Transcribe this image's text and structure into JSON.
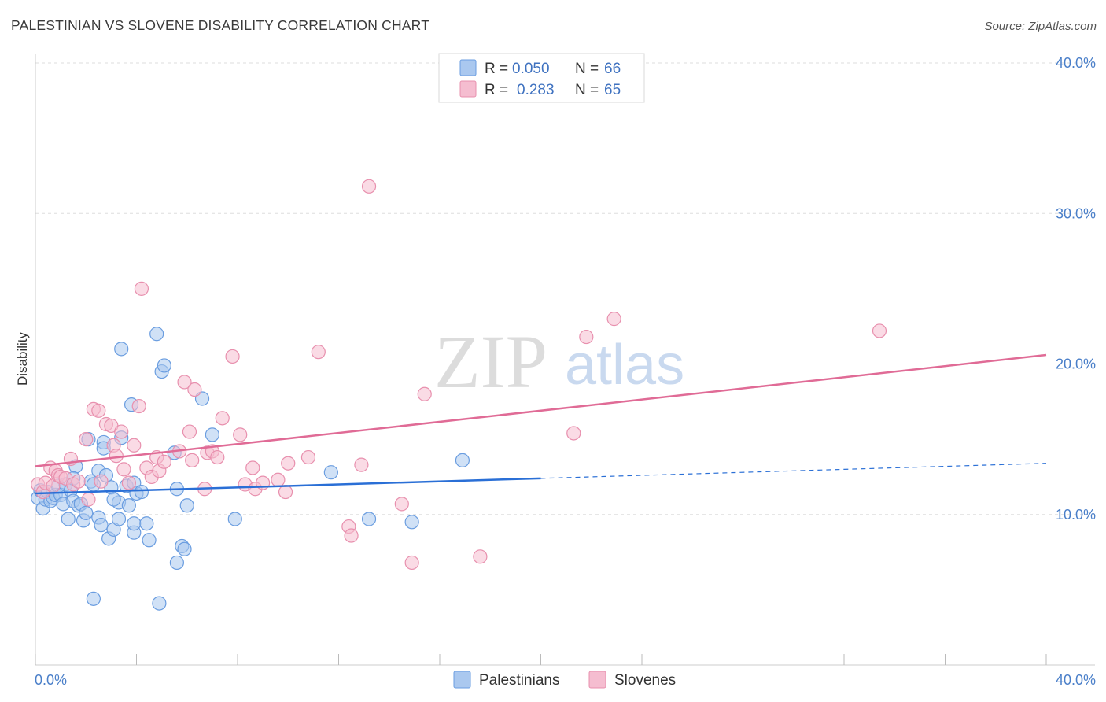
{
  "title": "PALESTINIAN VS SLOVENE DISABILITY CORRELATION CHART",
  "source": "Source: ZipAtlas.com",
  "watermark": {
    "zip": "ZIP",
    "atlas": "atlas"
  },
  "colors": {
    "blue_fill": "#aac8ef",
    "blue_stroke": "#6a9de0",
    "blue_line": "#2a6fd6",
    "pink_fill": "#f5bdd0",
    "pink_stroke": "#e890ae",
    "pink_line": "#e06b96",
    "grid": "#dddddd",
    "tick_text": "#4a7fc9"
  },
  "legend": {
    "rows": [
      {
        "r_label": "R = ",
        "r_value": "0.050",
        "n_label": "N = ",
        "n_value": "66"
      },
      {
        "r_label": "R = ",
        "r_value": "0.283",
        "n_label": "N = ",
        "n_value": "65"
      }
    ]
  },
  "chart_data": {
    "type": "scatter",
    "title": "PALESTINIAN VS SLOVENE DISABILITY CORRELATION CHART",
    "xlabel": "",
    "ylabel": "Disability",
    "xlim": [
      0,
      40
    ],
    "ylim": [
      0,
      40
    ],
    "x_tick_labels": [
      "0.0%",
      "40.0%"
    ],
    "y_ticks": [
      10,
      20,
      30,
      40
    ],
    "y_tick_labels": [
      "10.0%",
      "20.0%",
      "30.0%",
      "40.0%"
    ],
    "grid": true,
    "legend_position": "top-center",
    "series": [
      {
        "name": "Palestinians",
        "r": 0.05,
        "n": 66,
        "trend": {
          "x0": 0,
          "y0": 11.4,
          "x1": 20,
          "y1": 12.4,
          "dashed_to_x": 40,
          "dashed_to_y": 13.4
        },
        "points": [
          [
            0.1,
            11.1
          ],
          [
            0.2,
            11.6
          ],
          [
            0.3,
            10.4
          ],
          [
            0.4,
            11.0
          ],
          [
            0.5,
            11.5
          ],
          [
            0.6,
            10.9
          ],
          [
            0.7,
            11.1
          ],
          [
            0.8,
            11.3
          ],
          [
            0.9,
            11.9
          ],
          [
            1.0,
            11.3
          ],
          [
            1.1,
            10.7
          ],
          [
            1.2,
            12.0
          ],
          [
            1.3,
            9.7
          ],
          [
            1.4,
            11.6
          ],
          [
            1.5,
            10.9
          ],
          [
            1.6,
            13.2
          ],
          [
            1.7,
            10.6
          ],
          [
            1.8,
            10.7
          ],
          [
            1.9,
            9.6
          ],
          [
            2.0,
            10.1
          ],
          [
            2.1,
            15.0
          ],
          [
            2.2,
            12.2
          ],
          [
            2.3,
            12.0
          ],
          [
            2.5,
            12.9
          ],
          [
            2.5,
            9.8
          ],
          [
            2.6,
            9.3
          ],
          [
            2.7,
            14.8
          ],
          [
            2.7,
            14.4
          ],
          [
            2.8,
            12.6
          ],
          [
            2.9,
            8.4
          ],
          [
            3.0,
            11.8
          ],
          [
            3.1,
            9.0
          ],
          [
            3.3,
            9.7
          ],
          [
            3.3,
            10.8
          ],
          [
            3.4,
            21.0
          ],
          [
            3.4,
            15.1
          ],
          [
            3.6,
            11.9
          ],
          [
            3.7,
            10.6
          ],
          [
            3.8,
            17.3
          ],
          [
            3.9,
            8.8
          ],
          [
            3.9,
            9.4
          ],
          [
            4.0,
            11.4
          ],
          [
            4.4,
            9.4
          ],
          [
            4.5,
            8.3
          ],
          [
            4.8,
            22.0
          ],
          [
            5.0,
            19.5
          ],
          [
            5.1,
            19.9
          ],
          [
            5.5,
            14.1
          ],
          [
            5.6,
            11.7
          ],
          [
            5.8,
            7.9
          ],
          [
            5.9,
            7.7
          ],
          [
            6.0,
            10.6
          ],
          [
            6.6,
            17.7
          ],
          [
            7.0,
            15.3
          ],
          [
            7.9,
            9.7
          ],
          [
            11.7,
            12.8
          ],
          [
            13.2,
            9.7
          ],
          [
            14.9,
            9.5
          ],
          [
            16.9,
            13.6
          ],
          [
            3.9,
            12.1
          ],
          [
            2.3,
            4.4
          ],
          [
            4.9,
            4.1
          ],
          [
            5.6,
            6.8
          ],
          [
            1.5,
            12.4
          ],
          [
            3.1,
            11.0
          ],
          [
            4.2,
            11.5
          ]
        ]
      },
      {
        "name": "Slovenes",
        "r": 0.283,
        "n": 65,
        "trend": {
          "x0": 0,
          "y0": 13.2,
          "x1": 40,
          "y1": 20.6
        },
        "points": [
          [
            0.1,
            12.0
          ],
          [
            0.3,
            11.5
          ],
          [
            0.4,
            12.1
          ],
          [
            0.6,
            13.1
          ],
          [
            0.7,
            11.9
          ],
          [
            0.8,
            12.9
          ],
          [
            0.9,
            12.6
          ],
          [
            1.0,
            12.5
          ],
          [
            1.2,
            12.4
          ],
          [
            1.4,
            13.7
          ],
          [
            1.5,
            12.0
          ],
          [
            1.7,
            12.2
          ],
          [
            2.0,
            15.0
          ],
          [
            2.1,
            11.0
          ],
          [
            2.3,
            17.0
          ],
          [
            2.5,
            16.9
          ],
          [
            2.6,
            12.2
          ],
          [
            2.8,
            16.0
          ],
          [
            3.0,
            15.9
          ],
          [
            3.1,
            14.6
          ],
          [
            3.2,
            13.9
          ],
          [
            3.4,
            15.5
          ],
          [
            3.5,
            13.0
          ],
          [
            3.7,
            12.1
          ],
          [
            3.9,
            14.6
          ],
          [
            4.1,
            17.2
          ],
          [
            4.2,
            25.0
          ],
          [
            4.4,
            13.1
          ],
          [
            4.6,
            12.5
          ],
          [
            4.8,
            13.8
          ],
          [
            4.9,
            12.9
          ],
          [
            5.1,
            13.5
          ],
          [
            5.7,
            14.2
          ],
          [
            5.9,
            18.8
          ],
          [
            6.1,
            15.5
          ],
          [
            6.2,
            13.6
          ],
          [
            6.3,
            18.3
          ],
          [
            6.7,
            11.7
          ],
          [
            6.8,
            14.1
          ],
          [
            7.0,
            14.2
          ],
          [
            7.2,
            13.8
          ],
          [
            7.4,
            16.4
          ],
          [
            7.8,
            20.5
          ],
          [
            8.1,
            15.3
          ],
          [
            8.3,
            12.0
          ],
          [
            8.6,
            13.1
          ],
          [
            8.7,
            11.7
          ],
          [
            9.0,
            12.1
          ],
          [
            9.6,
            12.3
          ],
          [
            9.9,
            11.5
          ],
          [
            10.0,
            13.4
          ],
          [
            10.8,
            13.8
          ],
          [
            11.2,
            20.8
          ],
          [
            12.4,
            9.2
          ],
          [
            12.5,
            8.6
          ],
          [
            12.9,
            13.3
          ],
          [
            13.2,
            31.8
          ],
          [
            14.5,
            10.7
          ],
          [
            14.9,
            6.8
          ],
          [
            15.4,
            18.0
          ],
          [
            17.6,
            7.2
          ],
          [
            21.3,
            15.4
          ],
          [
            21.8,
            21.8
          ],
          [
            22.9,
            23.0
          ],
          [
            33.4,
            22.2
          ]
        ]
      }
    ]
  },
  "bottom_legend": {
    "items": [
      "Palestinians",
      "Slovenes"
    ]
  }
}
